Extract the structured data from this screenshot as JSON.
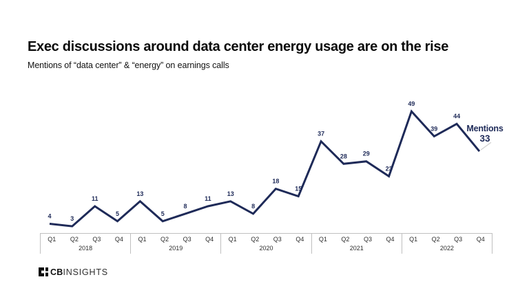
{
  "header": {
    "title": "Exec discussions around data center energy usage are on the rise",
    "subtitle": "Mentions of “data center” & “energy” on earnings calls"
  },
  "chart_data": {
    "type": "line",
    "x_labels": [
      "Q1",
      "Q2",
      "Q3",
      "Q4",
      "Q1",
      "Q2",
      "Q3",
      "Q4",
      "Q1",
      "Q2",
      "Q3",
      "Q4",
      "Q1",
      "Q2",
      "Q3",
      "Q4",
      "Q1",
      "Q2",
      "Q3",
      "Q4"
    ],
    "year_groups": [
      "2018",
      "2019",
      "2020",
      "2021",
      "2022"
    ],
    "values": [
      4,
      3,
      11,
      5,
      13,
      5,
      8,
      11,
      13,
      8,
      18,
      15,
      37,
      28,
      29,
      23,
      49,
      39,
      44,
      33
    ],
    "series": [
      {
        "name": "Mentions",
        "values": [
          4,
          3,
          11,
          5,
          13,
          5,
          8,
          11,
          13,
          8,
          18,
          15,
          37,
          28,
          29,
          23,
          49,
          39,
          44,
          33
        ]
      }
    ],
    "title": "Exec discussions around data center energy usage are on the rise",
    "xlabel": "",
    "ylabel": "Mentions",
    "ylim": [
      0,
      49
    ],
    "grid": false,
    "legend_position": "end-of-line",
    "colors": {
      "line": "#1e2a58",
      "point_label": "#1e2a58",
      "axis_border": "#bfbfbf",
      "axis_text": "#2d2d2d",
      "connector": "#d0d0d0"
    }
  },
  "annotation": {
    "label": "Mentions",
    "value": "33"
  },
  "logo": {
    "bold": "CB",
    "light": "INSIGHTS"
  }
}
